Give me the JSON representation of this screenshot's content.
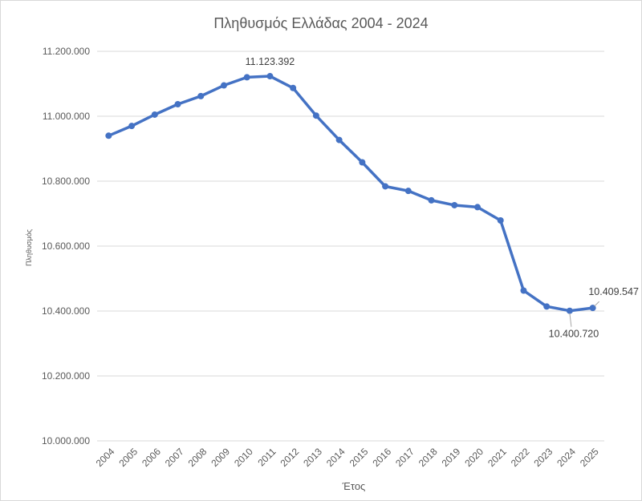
{
  "chart_data": {
    "type": "line",
    "title": "Πληθυσμός Ελλάδας 2004 - 2024",
    "xlabel": "Έτος",
    "ylabel": "Πληθυσμός",
    "x": [
      "2004",
      "2005",
      "2006",
      "2007",
      "2008",
      "2009",
      "2010",
      "2011",
      "2012",
      "2013",
      "2014",
      "2015",
      "2016",
      "2017",
      "2018",
      "2019",
      "2020",
      "2021",
      "2022",
      "2023",
      "2024",
      "2025"
    ],
    "series": [
      {
        "values": [
          10940000,
          10970000,
          11005000,
          11037000,
          11062000,
          11095000,
          11120000,
          11123392,
          11087000,
          11002000,
          10927000,
          10858000,
          10784000,
          10770000,
          10741000,
          10726000,
          10720000,
          10679000,
          10463000,
          10414000,
          10400720,
          10409547
        ]
      }
    ],
    "ylim": [
      10000000,
      11200000
    ],
    "yticks": [
      "10.000.000",
      "10.200.000",
      "10.400.000",
      "10.600.000",
      "10.800.000",
      "11.000.000",
      "11.200.000"
    ],
    "data_labels": [
      {
        "text": "11.123.392",
        "index": 7
      },
      {
        "text": "10.400.720",
        "index": 20
      },
      {
        "text": "10.409.547",
        "index": 21
      }
    ],
    "grid": true,
    "legend": "none",
    "colors": {
      "line": "#4472c4",
      "grid": "#d9d9d9",
      "text": "#595959"
    }
  }
}
